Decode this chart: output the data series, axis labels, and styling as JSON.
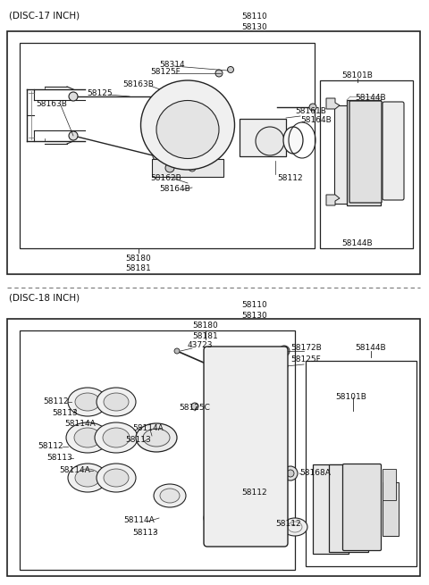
{
  "bg": "#ffffff",
  "lc": "#222222",
  "top_title": "(DISC-17 INCH)",
  "bot_title": "(DISC-18 INCH)",
  "top_labels_center": [
    "58110",
    "58130"
  ],
  "bot_labels_center": [
    "58110",
    "58130"
  ]
}
